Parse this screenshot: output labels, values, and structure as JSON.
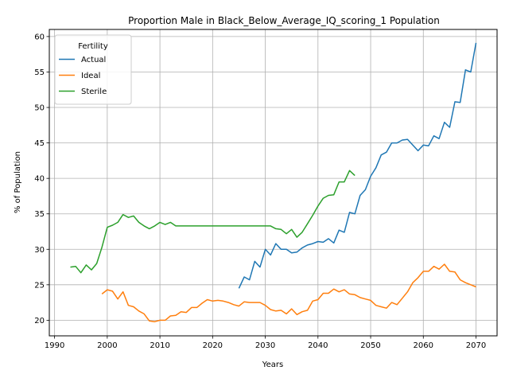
{
  "chart_data": {
    "type": "line",
    "title": "Proportion Male in Black_Below_Average_IQ_scoring_1 Population",
    "xlabel": "Years",
    "ylabel": "% of Population",
    "xlim": [
      1989,
      2074
    ],
    "ylim": [
      17.8,
      61.0
    ],
    "xticks": [
      1990,
      2000,
      2010,
      2020,
      2030,
      2040,
      2050,
      2060,
      2070
    ],
    "yticks": [
      20,
      25,
      30,
      35,
      40,
      45,
      50,
      55,
      60
    ],
    "grid": true,
    "legend": {
      "title": "Fertility",
      "placement": "top-left"
    },
    "series": [
      {
        "name": "Actual",
        "color": "#1f77b4",
        "x": [
          2025,
          2026,
          2027,
          2028,
          2029,
          2030,
          2031,
          2032,
          2033,
          2034,
          2035,
          2036,
          2037,
          2038,
          2039,
          2040,
          2041,
          2042,
          2043,
          2044,
          2045,
          2046,
          2047,
          2048,
          2049,
          2050,
          2051,
          2052,
          2053,
          2054,
          2055,
          2056,
          2057,
          2058,
          2059,
          2060,
          2061,
          2062,
          2063,
          2064,
          2065,
          2066,
          2067,
          2068,
          2069,
          2070
        ],
        "y": [
          24.5,
          26.1,
          25.7,
          28.3,
          27.5,
          30.0,
          29.2,
          30.8,
          30.0,
          30.0,
          29.5,
          29.6,
          30.2,
          30.6,
          30.8,
          31.1,
          31.0,
          31.5,
          30.9,
          32.7,
          32.4,
          35.2,
          35.0,
          37.6,
          38.4,
          40.3,
          41.5,
          43.3,
          43.7,
          45.0,
          45.0,
          45.4,
          45.5,
          44.7,
          43.9,
          44.7,
          44.6,
          46.0,
          45.6,
          47.9,
          47.2,
          50.8,
          50.7,
          55.3,
          55.0,
          59.1
        ]
      },
      {
        "name": "Ideal",
        "color": "#ff7f0e",
        "x": [
          1999,
          2000,
          2001,
          2002,
          2003,
          2004,
          2005,
          2006,
          2007,
          2008,
          2009,
          2010,
          2011,
          2012,
          2013,
          2014,
          2015,
          2016,
          2017,
          2018,
          2019,
          2020,
          2021,
          2022,
          2023,
          2024,
          2025,
          2026,
          2027,
          2028,
          2029,
          2030,
          2031,
          2032,
          2033,
          2034,
          2035,
          2036,
          2037,
          2038,
          2039,
          2040,
          2041,
          2042,
          2043,
          2044,
          2045,
          2046,
          2047,
          2048,
          2049,
          2050,
          2051,
          2052,
          2053,
          2054,
          2055,
          2056,
          2057,
          2058,
          2059,
          2060,
          2061,
          2062,
          2063,
          2064,
          2065,
          2066,
          2067,
          2068,
          2069,
          2070
        ],
        "y": [
          23.7,
          24.3,
          24.1,
          23.0,
          24.0,
          22.1,
          21.9,
          21.3,
          20.9,
          19.9,
          19.8,
          20.0,
          20.0,
          20.6,
          20.7,
          21.2,
          21.1,
          21.8,
          21.8,
          22.4,
          22.9,
          22.7,
          22.8,
          22.7,
          22.5,
          22.2,
          22.0,
          22.6,
          22.5,
          22.5,
          22.5,
          22.1,
          21.5,
          21.3,
          21.4,
          20.9,
          21.6,
          20.8,
          21.2,
          21.4,
          22.7,
          22.9,
          23.8,
          23.8,
          24.4,
          24.0,
          24.3,
          23.7,
          23.6,
          23.2,
          23.0,
          22.8,
          22.1,
          21.9,
          21.7,
          22.5,
          22.2,
          23.1,
          24.0,
          25.3,
          26.0,
          26.9,
          26.9,
          27.6,
          27.2,
          27.9,
          26.9,
          26.8,
          25.7,
          25.3,
          25.0,
          24.7
        ]
      },
      {
        "name": "Sterile",
        "color": "#2ca02c",
        "x": [
          1993,
          1994,
          1995,
          1996,
          1997,
          1998,
          1999,
          2000,
          2001,
          2002,
          2003,
          2004,
          2005,
          2006,
          2007,
          2008,
          2009,
          2010,
          2011,
          2012,
          2013,
          2014,
          2015,
          2016,
          2017,
          2018,
          2019,
          2020,
          2021,
          2022,
          2023,
          2024,
          2025,
          2026,
          2027,
          2028,
          2029,
          2030,
          2031,
          2032,
          2033,
          2034,
          2035,
          2036,
          2037,
          2038,
          2039,
          2040,
          2041,
          2042,
          2043,
          2044,
          2045,
          2046,
          2047
        ],
        "y": [
          27.5,
          27.6,
          26.7,
          27.8,
          27.1,
          28.0,
          30.3,
          33.1,
          33.4,
          33.8,
          34.9,
          34.5,
          34.7,
          33.8,
          33.3,
          32.9,
          33.3,
          33.8,
          33.5,
          33.8,
          33.3,
          33.3,
          33.3,
          33.3,
          33.3,
          33.3,
          33.3,
          33.3,
          33.3,
          33.3,
          33.3,
          33.3,
          33.3,
          33.3,
          33.3,
          33.3,
          33.3,
          33.3,
          33.3,
          32.9,
          32.8,
          32.2,
          32.8,
          31.7,
          32.4,
          33.6,
          34.8,
          36.1,
          37.2,
          37.6,
          37.7,
          39.5,
          39.5,
          41.1,
          40.4
        ]
      }
    ]
  }
}
